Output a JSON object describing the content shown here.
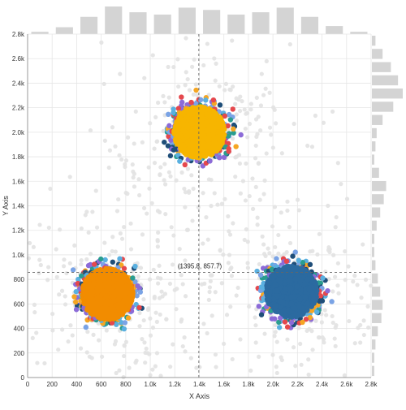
{
  "chart_data": {
    "type": "scatter",
    "xlabel": "X Axis",
    "ylabel": "Y Axis",
    "xlim": [
      0,
      2800
    ],
    "ylim": [
      0,
      2800
    ],
    "x_ticks": [
      0,
      200,
      400,
      600,
      800,
      1000,
      1200,
      1400,
      1600,
      1800,
      2000,
      2200,
      2400,
      2600,
      2800
    ],
    "x_tick_labels": [
      "0",
      "200",
      "400",
      "600",
      "800",
      "1.0k",
      "1.2k",
      "1.4k",
      "1.6k",
      "1.8k",
      "2.0k",
      "2.2k",
      "2.4k",
      "2.6k",
      "2.8k"
    ],
    "y_ticks": [
      0,
      200,
      400,
      600,
      800,
      1000,
      1200,
      1400,
      1600,
      1800,
      2000,
      2200,
      2400,
      2600,
      2800
    ],
    "y_tick_labels": [
      "0",
      "200",
      "400",
      "600",
      "800",
      "1.0k",
      "1.2k",
      "1.4k",
      "1.6k",
      "1.8k",
      "2.0k",
      "2.2k",
      "2.4k",
      "2.6k",
      "2.8k"
    ],
    "grid": true,
    "clusters": [
      {
        "center": [
          650,
          680
        ],
        "spread": 210,
        "color": "#f28c00"
      },
      {
        "center": [
          1400,
          2000
        ],
        "spread": 210,
        "color": "#f7b500"
      },
      {
        "center": [
          2150,
          700
        ],
        "spread": 210,
        "color": "#2b6aa0"
      }
    ],
    "accent_colors": [
      "#e5484d",
      "#7aa3e5",
      "#8c6bd8",
      "#2a9d8f",
      "#1f4e79",
      "#5ab0e0",
      "#f5a623"
    ],
    "background_points_color": "#e2e2e2",
    "crosshair": {
      "x": 1395.8,
      "y": 857.7,
      "label": "(1395.8, 857.7)"
    },
    "top_histogram": [
      2,
      6,
      15,
      24,
      19,
      17,
      23,
      21,
      17,
      19,
      23,
      15,
      7,
      2
    ],
    "right_histogram": [
      3,
      9,
      16,
      22,
      26,
      18,
      9,
      4,
      3,
      2,
      6,
      12,
      10,
      7,
      4,
      2,
      2,
      3,
      5,
      7,
      9,
      8,
      5,
      3,
      2,
      2
    ],
    "histogram_color": "#d4d4d4"
  }
}
